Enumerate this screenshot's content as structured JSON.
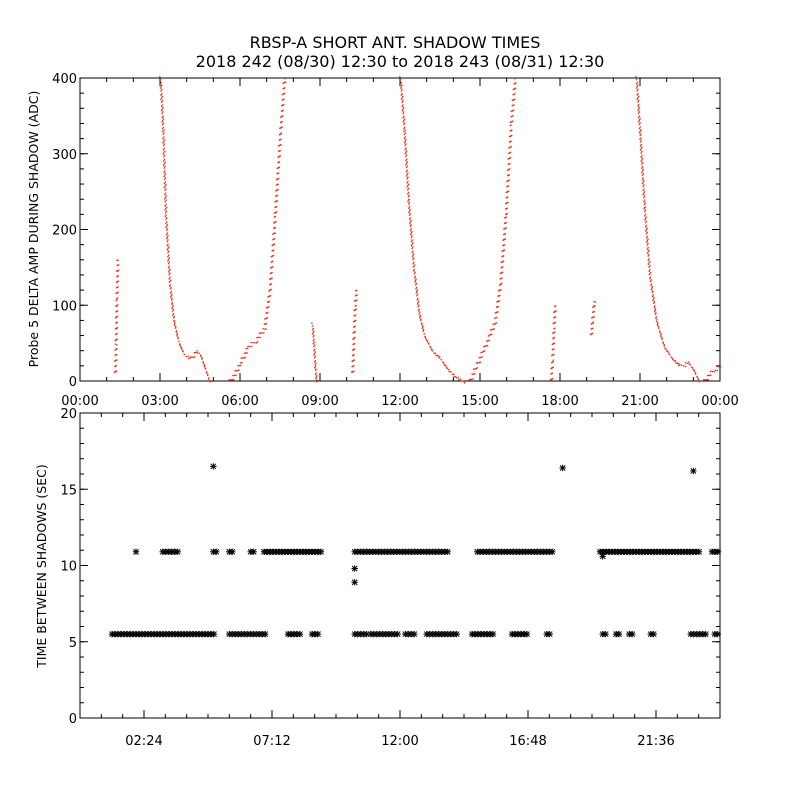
{
  "title_line1": "RBSP-A SHORT ANT. SHADOW TIMES",
  "title_line2": "2018 242 (08/30) 12:30 to 2018 243 (08/31) 12:30",
  "colors": {
    "top_series": "#e8341c",
    "bottom_series": "#000000",
    "axes": "#000000"
  },
  "chart_data": [
    {
      "type": "scatter",
      "title": "",
      "xlabel": "",
      "ylabel": "Probe 5 DELTA AMP DURING SHADOW (ADC)",
      "xlim": [
        0,
        24
      ],
      "ylim": [
        0,
        400
      ],
      "x_unit": "hours",
      "x_ticks": [
        "00:00",
        "03:00",
        "06:00",
        "09:00",
        "12:00",
        "15:00",
        "18:00",
        "21:00",
        "00:00"
      ],
      "y_ticks": [
        "0",
        "100",
        "200",
        "300",
        "400"
      ],
      "marker": "dot",
      "grid": false,
      "series": [
        {
          "segments": [
            {
              "x": [
                1.3,
                1.33,
                1.36,
                1.4
              ],
              "y": [
                10,
                50,
                110,
                160
              ]
            },
            {
              "x": [
                3.0,
                3.1,
                3.2,
                3.35,
                3.5,
                3.7,
                3.9,
                4.15,
                4.35,
                4.5,
                4.7,
                4.85
              ],
              "y": [
                400,
                330,
                220,
                130,
                80,
                50,
                35,
                30,
                40,
                35,
                15,
                0
              ]
            },
            {
              "x": [
                5.6,
                5.8,
                6.0,
                6.3,
                6.6,
                6.9,
                7.1,
                7.3,
                7.5,
                7.65
              ],
              "y": [
                0,
                10,
                25,
                45,
                55,
                70,
                120,
                220,
                330,
                400
              ]
            },
            {
              "x": [
                8.7,
                8.75,
                8.8,
                8.85
              ],
              "y": [
                75,
                50,
                20,
                0
              ]
            },
            {
              "x": [
                10.2,
                10.25,
                10.3,
                10.35
              ],
              "y": [
                10,
                60,
                100,
                120
              ]
            },
            {
              "x": [
                12.0,
                12.15,
                12.3,
                12.5,
                12.7,
                12.9,
                13.2,
                13.5,
                13.8,
                14.1,
                14.4
              ],
              "y": [
                400,
                330,
                240,
                150,
                90,
                60,
                40,
                30,
                15,
                5,
                0
              ]
            },
            {
              "x": [
                14.6,
                14.85,
                15.1,
                15.35,
                15.55,
                15.75,
                15.95,
                16.15,
                16.3
              ],
              "y": [
                0,
                20,
                40,
                60,
                80,
                130,
                220,
                340,
                400
              ]
            },
            {
              "x": [
                17.65,
                17.7,
                17.75,
                17.8
              ],
              "y": [
                0,
                30,
                70,
                100
              ]
            },
            {
              "x": [
                19.15,
                19.2,
                19.25,
                19.3
              ],
              "y": [
                60,
                80,
                100,
                105
              ]
            },
            {
              "x": [
                20.85,
                21.0,
                21.15,
                21.35,
                21.6,
                21.9,
                22.2,
                22.5,
                22.8,
                23.0,
                23.2
              ],
              "y": [
                400,
                320,
                230,
                140,
                80,
                45,
                30,
                20,
                25,
                15,
                0
              ]
            },
            {
              "x": [
                23.4,
                23.6,
                23.8,
                24.0
              ],
              "y": [
                0,
                10,
                15,
                20
              ]
            }
          ]
        }
      ]
    },
    {
      "type": "scatter",
      "title": "",
      "xlabel": "",
      "ylabel": "TIME BETWEEN SHADOWS (SEC)",
      "xlim": [
        0,
        24
      ],
      "ylim": [
        0,
        20
      ],
      "x_unit": "hours",
      "x_tick_values": [
        2.4,
        7.2,
        12.0,
        16.8,
        21.6
      ],
      "x_ticks": [
        "02:24",
        "07:12",
        "12:00",
        "16:48",
        "21:36"
      ],
      "y_ticks": [
        "0",
        "5",
        "10",
        "15",
        "20"
      ],
      "marker": "asterisk",
      "grid": false,
      "series": [
        {
          "runs": [
            {
              "y": 5.5,
              "x_ranges": [
                [
                  1.2,
                  5.1
                ],
                [
                  5.6,
                  7.0
                ],
                [
                  7.8,
                  8.3
                ],
                [
                  8.7,
                  9.0
                ],
                [
                  10.3,
                  10.8
                ],
                [
                  10.9,
                  12.0
                ],
                [
                  12.2,
                  12.6
                ],
                [
                  13.0,
                  14.2
                ],
                [
                  14.7,
                  15.5
                ],
                [
                  16.2,
                  16.8
                ],
                [
                  17.5,
                  17.7
                ],
                [
                  19.6,
                  19.8
                ],
                [
                  20.1,
                  20.3
                ],
                [
                  20.6,
                  20.8
                ],
                [
                  21.4,
                  21.6
                ],
                [
                  22.9,
                  23.5
                ],
                [
                  23.8,
                  24.0
                ]
              ]
            },
            {
              "y": 10.9,
              "x_ranges": [
                [
                  3.1,
                  3.7
                ],
                [
                  5.0,
                  5.2
                ],
                [
                  5.6,
                  5.8
                ],
                [
                  6.4,
                  6.6
                ],
                [
                  6.9,
                  9.1
                ],
                [
                  10.3,
                  13.8
                ],
                [
                  14.9,
                  17.8
                ],
                [
                  19.5,
                  23.3
                ],
                [
                  23.7,
                  24.0
                ]
              ]
            }
          ],
          "points": [
            {
              "x": 2.1,
              "y": 10.9
            },
            {
              "x": 5.0,
              "y": 16.5
            },
            {
              "x": 10.3,
              "y": 9.8
            },
            {
              "x": 10.3,
              "y": 8.9
            },
            {
              "x": 18.1,
              "y": 16.4
            },
            {
              "x": 19.6,
              "y": 10.6
            },
            {
              "x": 23.0,
              "y": 16.2
            }
          ]
        }
      ]
    }
  ]
}
